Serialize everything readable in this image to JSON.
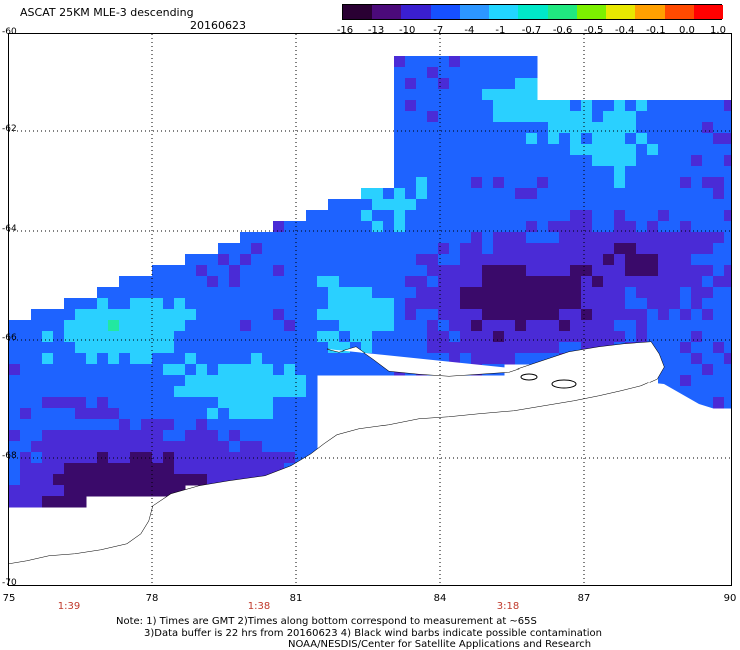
{
  "title": "ASCAT 25KM MLE-3 descending",
  "date": "20160623",
  "colorbar": {
    "ticks": [
      "-16",
      "-13",
      "-10",
      "-7",
      "-4",
      "-1",
      "-0.7",
      "-0.6",
      "-0.5",
      "-0.4",
      "-0.1",
      "0.0",
      "1.0"
    ],
    "colors": [
      "#2a0033",
      "#4b0a7a",
      "#3a1fd0",
      "#1650ff",
      "#2c96ff",
      "#22d6ff",
      "#00e8c8",
      "#20e880",
      "#7cf000",
      "#e8e800",
      "#ffa000",
      "#ff4a00",
      "#ff0000"
    ]
  },
  "map": {
    "lat_labels": [
      "-60",
      "-62",
      "-64",
      "-66",
      "-68",
      "-70"
    ],
    "lon_labels": [
      "75",
      "78",
      "81",
      "84",
      "87",
      "90"
    ],
    "time_labels": [
      "1:39",
      "1:38",
      "3:18"
    ],
    "palette": {
      "very_low": "#3a0a6a",
      "low": "#4a2bd6",
      "mid": "#1e63ff",
      "high": "#2ad0ff",
      "peak": "#22e8a0"
    }
  },
  "notes": {
    "line1": "Note: 1) Times are GMT 2)Times along bottom correspond to measurement at ~65S",
    "line2": "3)Data buffer is 22 hrs from 20160623 4) Black wind barbs indicate possible contamination",
    "line3": "NOAA/NESDIS/Center for Satellite Applications and Research"
  }
}
